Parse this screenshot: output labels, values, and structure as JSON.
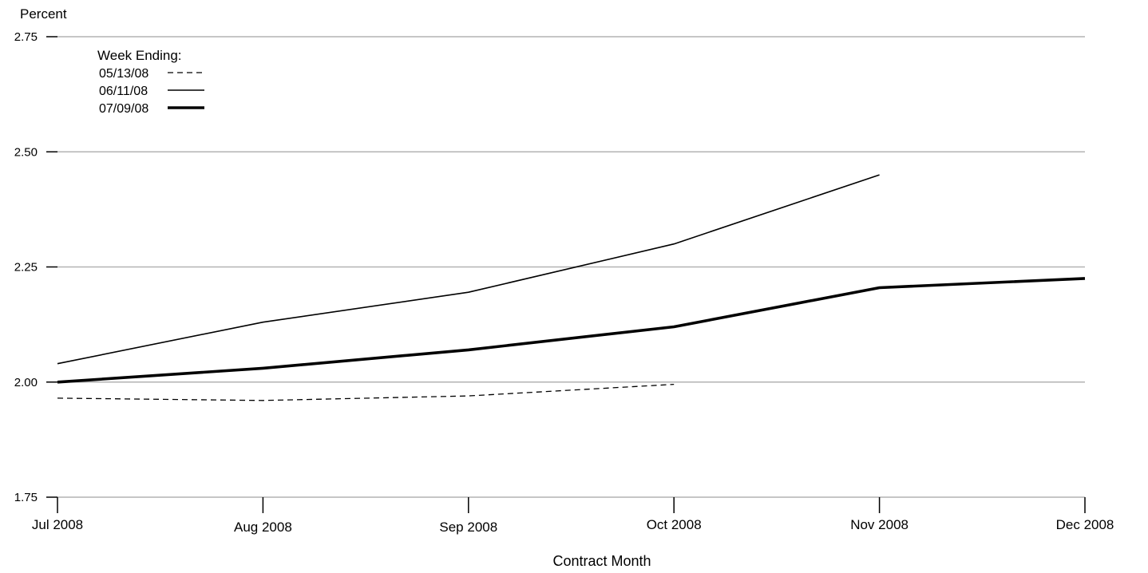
{
  "chart_data": {
    "type": "line",
    "ylabel": "Percent",
    "xlabel": "Contract Month",
    "legend_title": "Week Ending:",
    "legend_position": "top-left",
    "grid": true,
    "ylim": [
      1.75,
      2.75
    ],
    "yticks": [
      "2.75",
      "2.50",
      "2.25",
      "2.00",
      "1.75"
    ],
    "yticks_values": [
      2.75,
      2.5,
      2.25,
      2.0,
      1.75
    ],
    "categories": [
      "Jul 2008",
      "Aug 2008",
      "Sep 2008",
      "Oct 2008",
      "Nov 2008",
      "Dec 2008"
    ],
    "series": [
      {
        "name": "05/13/08",
        "style": "dashed",
        "values": [
          1.965,
          1.96,
          1.97,
          1.995,
          null,
          null
        ]
      },
      {
        "name": "06/11/08",
        "style": "thin",
        "values": [
          2.04,
          2.13,
          2.195,
          2.3,
          2.45,
          null
        ]
      },
      {
        "name": "07/09/08",
        "style": "thick",
        "values": [
          2.0,
          2.03,
          2.07,
          2.12,
          2.205,
          2.225
        ]
      }
    ],
    "colors": {
      "line": "#000000",
      "grid": "#b3b3b3"
    }
  }
}
